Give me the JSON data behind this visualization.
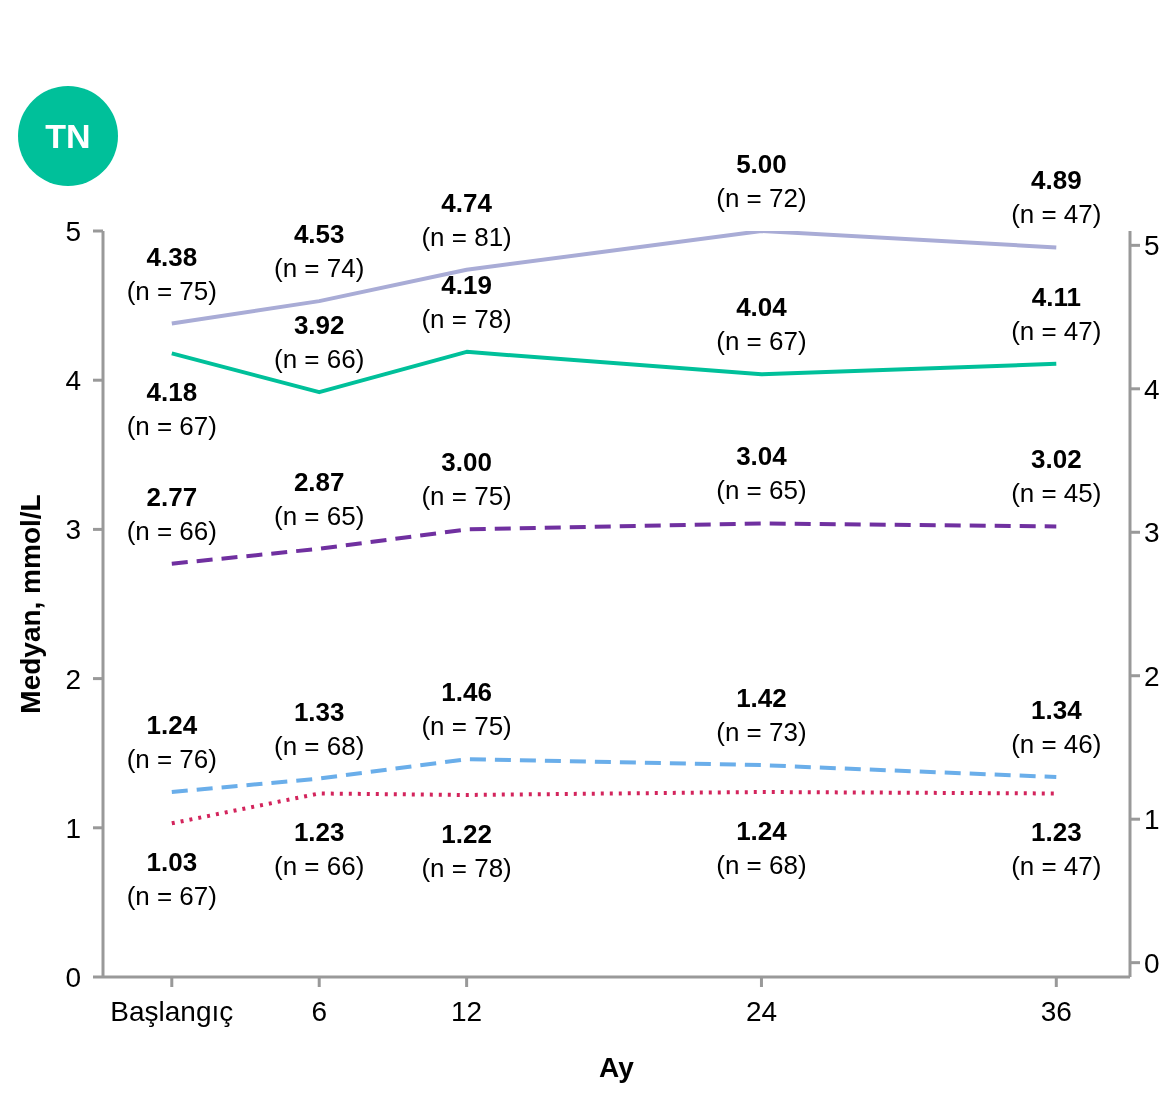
{
  "chart_data": {
    "type": "line",
    "xlabel": "Ay",
    "ylabel": "Medyan, mmol/L",
    "annotations": [
      "TN"
    ],
    "x": [
      0,
      6,
      12,
      24,
      36
    ],
    "xlim": [
      -2.8,
      39
    ],
    "xticks": [
      {
        "value": 0,
        "label": "Başlangıç"
      },
      6,
      12,
      24,
      36
    ],
    "ylim": [
      0,
      5
    ],
    "yticks": [
      0,
      1,
      2,
      3,
      4,
      5
    ],
    "y2lim": [
      -0.1,
      5.1
    ],
    "y2ticks": [
      0,
      1,
      2,
      3,
      4,
      5
    ],
    "marker": "none",
    "series": [
      {
        "color": "#a9acd6",
        "line_style": "solid",
        "values": [
          4.38,
          4.53,
          4.74,
          5.0,
          4.89
        ],
        "value_labels": [
          "4.38\n(n = 75)",
          "4.53\n(n = 74)",
          "4.74\n(n = 81)",
          "5.00\n(n = 72)",
          "4.89\n(n = 47)"
        ]
      },
      {
        "color": "#00c09a",
        "line_style": "solid",
        "values": [
          4.18,
          3.92,
          4.19,
          4.04,
          4.11
        ],
        "value_labels": [
          "4.18\n(n = 67)",
          "3.92\n(n = 66)",
          "4.19\n(n = 78)",
          "4.04\n(n = 67)",
          "4.11\n(n = 47)"
        ]
      },
      {
        "color": "#7030a0",
        "line_style": "dashed",
        "values": [
          2.77,
          2.87,
          3.0,
          3.04,
          3.02
        ],
        "value_labels": [
          "2.77\n(n = 66)",
          "2.87\n(n = 65)",
          "3.00\n(n = 75)",
          "3.04\n(n = 65)",
          "3.02\n(n = 45)"
        ]
      },
      {
        "color": "#6aaeea",
        "line_style": "dashed",
        "values": [
          1.24,
          1.33,
          1.46,
          1.42,
          1.34
        ],
        "value_labels": [
          "1.24\n(n = 76)",
          "1.33\n(n = 68)",
          "1.46\n(n = 75)",
          "1.42\n(n = 73)",
          "1.34\n(n = 46)"
        ]
      },
      {
        "color": "#d3245c",
        "line_style": "dotted",
        "values": [
          1.03,
          1.23,
          1.22,
          1.24,
          1.23
        ],
        "value_labels": [
          "1.03\n(n = 67)",
          "1.23\n(n = 66)",
          "1.22\n(n = 78)",
          "1.24\n(n = 68)",
          "1.23\n(n = 47)"
        ]
      }
    ]
  }
}
